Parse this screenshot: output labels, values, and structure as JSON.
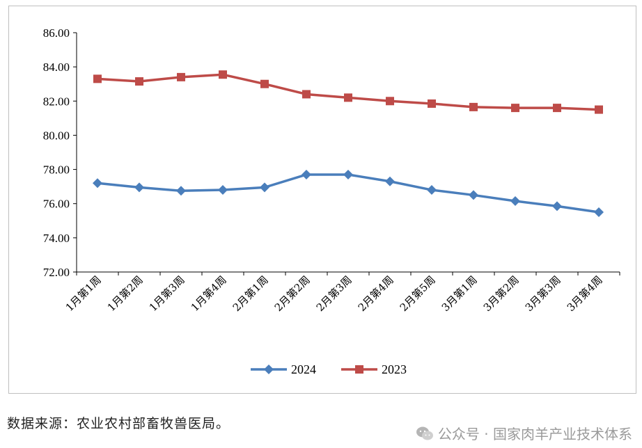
{
  "chart_data": {
    "type": "line",
    "categories": [
      "1月第1周",
      "1月第2周",
      "1月第3周",
      "1月第4周",
      "2月第1周",
      "2月第2周",
      "2月第3周",
      "2月第4周",
      "2月第5周",
      "3月第1周",
      "3月第2周",
      "3月第3周",
      "3月第4周"
    ],
    "series": [
      {
        "name": "2024",
        "color": "#4a7ebb",
        "marker": "diamond",
        "values": [
          77.2,
          76.95,
          76.75,
          76.8,
          76.95,
          77.7,
          77.7,
          77.3,
          76.8,
          76.5,
          76.15,
          75.85,
          75.5
        ]
      },
      {
        "name": "2023",
        "color": "#be4b48",
        "marker": "square",
        "values": [
          83.3,
          83.15,
          83.4,
          83.55,
          83.0,
          82.4,
          82.2,
          82.0,
          81.85,
          81.65,
          81.6,
          81.6,
          81.5
        ]
      }
    ],
    "ylim": [
      72,
      86
    ],
    "yticks": [
      "72.00",
      "74.00",
      "76.00",
      "78.00",
      "80.00",
      "82.00",
      "84.00",
      "86.00"
    ],
    "legend": "bottom",
    "grid": false
  },
  "footer": {
    "source": "数据来源：农业农村部畜牧兽医局。",
    "watermark": "公众号 · 国家肉羊产业技术体系"
  }
}
